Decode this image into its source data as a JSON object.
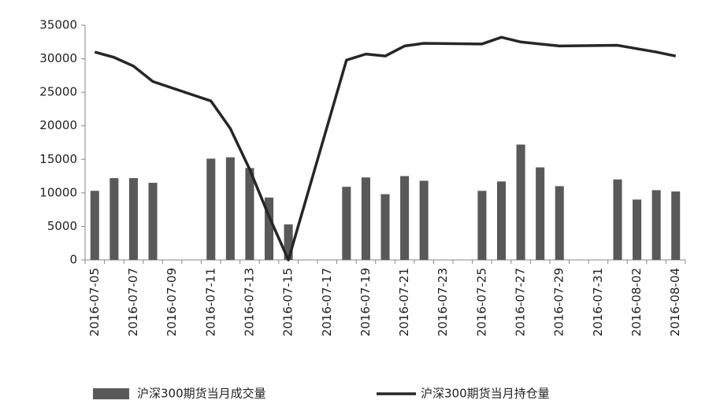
{
  "chart_data": {
    "type": "bar_line",
    "x": [
      "2016-07-05",
      "2016-07-06",
      "2016-07-07",
      "2016-07-08",
      "2016-07-11",
      "2016-07-12",
      "2016-07-13",
      "2016-07-14",
      "2016-07-15",
      "2016-07-18",
      "2016-07-19",
      "2016-07-20",
      "2016-07-21",
      "2016-07-22",
      "2016-07-25",
      "2016-07-26",
      "2016-07-27",
      "2016-07-28",
      "2016-07-29",
      "2016-08-01",
      "2016-08-02",
      "2016-08-03",
      "2016-08-04"
    ],
    "xlim": [
      "2016-07-05",
      "2016-08-04"
    ],
    "xticks": [
      "2016-07-05",
      "2016-07-07",
      "2016-07-09",
      "2016-07-11",
      "2016-07-13",
      "2016-07-15",
      "2016-07-17",
      "2016-07-19",
      "2016-07-21",
      "2016-07-23",
      "2016-07-25",
      "2016-07-27",
      "2016-07-29",
      "2016-07-31",
      "2016-08-02",
      "2016-08-04"
    ],
    "ylim": [
      0,
      35000
    ],
    "yticks": [
      0,
      5000,
      10000,
      15000,
      20000,
      25000,
      30000,
      35000
    ],
    "series": [
      {
        "name": "沪深300期货当月成交量",
        "type": "bar",
        "color": "#595959",
        "values": [
          10300,
          12200,
          12200,
          11500,
          15100,
          15300,
          13700,
          9300,
          5300,
          10900,
          12300,
          9800,
          12500,
          11800,
          10300,
          11700,
          17200,
          13800,
          11000,
          12000,
          9000,
          10400,
          10200
        ]
      },
      {
        "name": "沪深300期货当月持仓量",
        "type": "line",
        "color": "#262626",
        "values": [
          31000,
          30200,
          28900,
          26600,
          23700,
          19600,
          13500,
          6500,
          0,
          29800,
          30700,
          30400,
          31900,
          32300,
          32200,
          33200,
          32500,
          32200,
          31900,
          32000,
          31500,
          31000,
          30400
        ]
      }
    ]
  }
}
